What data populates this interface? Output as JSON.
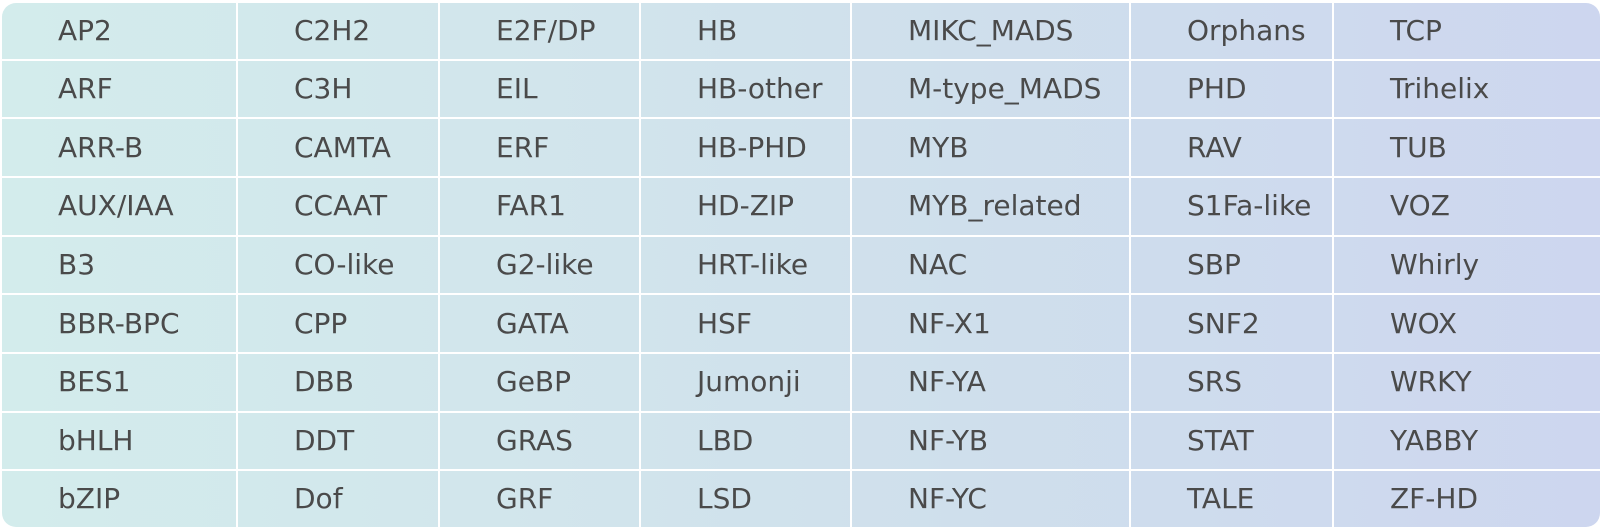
{
  "table": {
    "rows": [
      [
        "AP2",
        "C2H2",
        "E2F/DP",
        "HB",
        "MIKC_MADS",
        "Orphans",
        "TCP"
      ],
      [
        "ARF",
        "C3H",
        "EIL",
        "HB-other",
        "M-type_MADS",
        "PHD",
        "Trihelix"
      ],
      [
        "ARR-B",
        "CAMTA",
        "ERF",
        "HB-PHD",
        "MYB",
        "RAV",
        "TUB"
      ],
      [
        "AUX/IAA",
        "CCAAT",
        "FAR1",
        "HD-ZIP",
        "MYB_related",
        "S1Fa-like",
        "VOZ"
      ],
      [
        "B3",
        "CO-like",
        "G2-like",
        "HRT-like",
        "NAC",
        "SBP",
        "Whirly"
      ],
      [
        "BBR-BPC",
        "CPP",
        "GATA",
        "HSF",
        "NF-X1",
        "SNF2",
        "WOX"
      ],
      [
        "BES1",
        "DBB",
        "GeBP",
        "Jumonji",
        "NF-YA",
        "SRS",
        "WRKY"
      ],
      [
        "bHLH",
        "DDT",
        "GRAS",
        "LBD",
        "NF-YB",
        "STAT",
        "YABBY"
      ],
      [
        "bZIP",
        "Dof",
        "GRF",
        "LSD",
        "NF-YC",
        "TALE",
        "ZF-HD"
      ]
    ]
  },
  "colors": {
    "gradient_start": "#d3ecec",
    "gradient_end": "#cdd6ef",
    "grid_line": "#ffffff",
    "text": "#4a4a4a"
  }
}
